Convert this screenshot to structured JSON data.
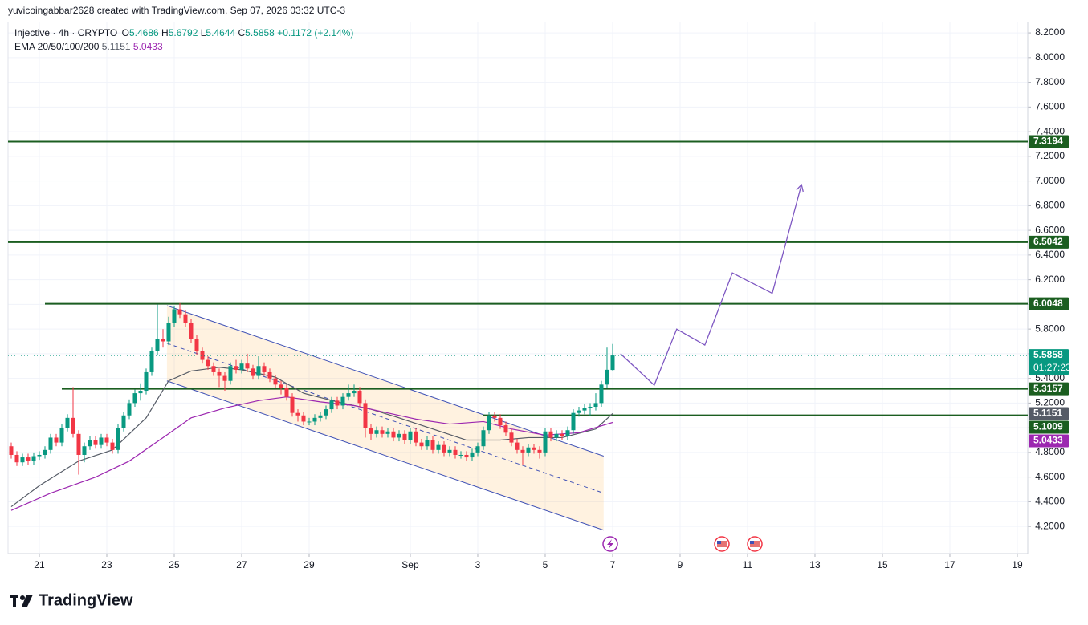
{
  "chart_data": {
    "type": "candlestick",
    "watermark": "yuvicoingabbar2628 created with TradingView.com, Sep 07, 2026 03:32 UTC-3",
    "brand": "TradingView",
    "header": {
      "symbol": "Injective · 4h · CRYPTO",
      "o": "O",
      "h": "H",
      "l": "L",
      "c": "C",
      "change": "+0.1172 (+2.14%)",
      "ema_label": "EMA 20/50/100/200"
    },
    "countdown": "01:27:23",
    "up_color": "#089981",
    "down_color": "#f23645",
    "xlim": [
      -0.57,
      180.86
    ],
    "ylim": [
      3.98,
      8.285
    ],
    "grid": true,
    "xticks": [
      {
        "value": 5,
        "label": "21"
      },
      {
        "value": 17,
        "label": "23"
      },
      {
        "value": 29,
        "label": "25"
      },
      {
        "value": 41,
        "label": "27"
      },
      {
        "value": 53,
        "label": "29"
      },
      {
        "value": 71,
        "label": "Sep"
      },
      {
        "value": 83,
        "label": "3"
      },
      {
        "value": 95,
        "label": "5"
      },
      {
        "value": 107,
        "label": "7"
      },
      {
        "value": 119,
        "label": "9"
      },
      {
        "value": 131,
        "label": "11"
      },
      {
        "value": 143,
        "label": "13"
      },
      {
        "value": 155,
        "label": "15"
      },
      {
        "value": 167,
        "label": "17"
      },
      {
        "value": 179,
        "label": "19"
      }
    ],
    "yticks": [
      {
        "value": 4.2,
        "label": "4.2000"
      },
      {
        "value": 4.4,
        "label": "4.4000"
      },
      {
        "value": 4.6,
        "label": "4.6000"
      },
      {
        "value": 4.8,
        "label": "4.8000"
      },
      {
        "value": 5.0,
        "label": "5.0000"
      },
      {
        "value": 5.2,
        "label": "5.2000"
      },
      {
        "value": 5.4,
        "label": "5.4000"
      },
      {
        "value": 5.6,
        "label": "5.6000"
      },
      {
        "value": 5.8,
        "label": "5.8000"
      },
      {
        "value": 6.0,
        "label": "6.0000"
      },
      {
        "value": 6.2,
        "label": "6.2000"
      },
      {
        "value": 6.4,
        "label": "6.4000"
      },
      {
        "value": 6.6,
        "label": "6.6000"
      },
      {
        "value": 6.8,
        "label": "6.8000"
      },
      {
        "value": 7.0,
        "label": "7.0000"
      },
      {
        "value": 7.2,
        "label": "7.2000"
      },
      {
        "value": 7.4,
        "label": "7.4000"
      },
      {
        "value": 7.6,
        "label": "7.6000"
      },
      {
        "value": 7.8,
        "label": "7.8000"
      },
      {
        "value": 8.0,
        "label": "8.0000"
      },
      {
        "value": 8.2,
        "label": "8.2000"
      }
    ],
    "ohlc": [
      [
        4.85,
        4.88,
        4.75,
        4.78
      ],
      [
        4.78,
        4.81,
        4.69,
        4.72
      ],
      [
        4.72,
        4.79,
        4.69,
        4.76
      ],
      [
        4.76,
        4.79,
        4.7,
        4.73
      ],
      [
        4.73,
        4.8,
        4.7,
        4.77
      ],
      [
        4.77,
        4.81,
        4.74,
        4.78
      ],
      [
        4.78,
        4.85,
        4.75,
        4.82
      ],
      [
        4.82,
        4.95,
        4.79,
        4.92
      ],
      [
        4.92,
        4.95,
        4.85,
        4.88
      ],
      [
        4.88,
        5.03,
        4.85,
        5.0
      ],
      [
        5.0,
        5.11,
        4.97,
        5.08
      ],
      [
        5.08,
        5.33,
        4.92,
        4.95
      ],
      [
        4.95,
        4.98,
        4.62,
        4.78
      ],
      [
        4.78,
        4.88,
        4.72,
        4.85
      ],
      [
        4.85,
        4.93,
        4.82,
        4.9
      ],
      [
        4.9,
        4.93,
        4.83,
        4.86
      ],
      [
        4.86,
        4.95,
        4.83,
        4.92
      ],
      [
        4.92,
        4.95,
        4.85,
        4.88
      ],
      [
        4.88,
        4.91,
        4.79,
        4.82
      ],
      [
        4.82,
        5.03,
        4.79,
        5.0
      ],
      [
        5.0,
        5.13,
        4.97,
        5.1
      ],
      [
        5.1,
        5.23,
        5.07,
        5.2
      ],
      [
        5.2,
        5.31,
        5.17,
        5.28
      ],
      [
        5.28,
        5.36,
        5.22,
        5.3
      ],
      [
        5.3,
        5.48,
        5.27,
        5.45
      ],
      [
        5.45,
        5.65,
        5.42,
        5.62
      ],
      [
        5.62,
        6.0,
        5.59,
        5.72
      ],
      [
        5.72,
        5.8,
        5.65,
        5.7
      ],
      [
        5.7,
        5.9,
        5.67,
        5.85
      ],
      [
        5.85,
        5.99,
        5.82,
        5.96
      ],
      [
        5.96,
        6.01,
        5.89,
        5.92
      ],
      [
        5.92,
        5.95,
        5.82,
        5.85
      ],
      [
        5.85,
        5.88,
        5.69,
        5.72
      ],
      [
        5.72,
        5.75,
        5.59,
        5.62
      ],
      [
        5.62,
        5.65,
        5.52,
        5.55
      ],
      [
        5.55,
        5.58,
        5.47,
        5.5
      ],
      [
        5.5,
        5.53,
        5.42,
        5.45
      ],
      [
        5.45,
        5.48,
        5.33,
        5.42
      ],
      [
        5.42,
        5.45,
        5.3,
        5.38
      ],
      [
        5.38,
        5.53,
        5.35,
        5.5
      ],
      [
        5.5,
        5.55,
        5.44,
        5.47
      ],
      [
        5.47,
        5.55,
        5.44,
        5.52
      ],
      [
        5.52,
        5.6,
        5.45,
        5.48
      ],
      [
        5.48,
        5.51,
        5.39,
        5.42
      ],
      [
        5.42,
        5.58,
        5.39,
        5.5
      ],
      [
        5.5,
        5.53,
        5.42,
        5.45
      ],
      [
        5.45,
        5.48,
        5.37,
        5.4
      ],
      [
        5.4,
        5.43,
        5.32,
        5.35
      ],
      [
        5.35,
        5.38,
        5.27,
        5.32
      ],
      [
        5.32,
        5.35,
        5.22,
        5.25
      ],
      [
        5.25,
        5.28,
        5.09,
        5.12
      ],
      [
        5.12,
        5.15,
        5.05,
        5.1
      ],
      [
        5.1,
        5.13,
        5.02,
        5.05
      ],
      [
        5.05,
        5.08,
        5.02,
        5.05
      ],
      [
        5.05,
        5.11,
        5.02,
        5.08
      ],
      [
        5.08,
        5.13,
        5.05,
        5.1
      ],
      [
        5.1,
        5.18,
        5.07,
        5.15
      ],
      [
        5.15,
        5.25,
        5.12,
        5.22
      ],
      [
        5.22,
        5.25,
        5.15,
        5.18
      ],
      [
        5.18,
        5.28,
        5.15,
        5.25
      ],
      [
        5.25,
        5.35,
        5.22,
        5.28
      ],
      [
        5.28,
        5.35,
        5.25,
        5.3
      ],
      [
        5.3,
        5.33,
        5.17,
        5.2
      ],
      [
        5.2,
        5.23,
        4.92,
        5.0
      ],
      [
        5.0,
        5.03,
        4.9,
        4.95
      ],
      [
        4.95,
        5.01,
        4.92,
        4.98
      ],
      [
        4.98,
        5.01,
        4.92,
        4.95
      ],
      [
        4.95,
        5.0,
        4.92,
        4.97
      ],
      [
        4.97,
        5.0,
        4.89,
        4.92
      ],
      [
        4.92,
        4.98,
        4.89,
        4.95
      ],
      [
        4.95,
        4.98,
        4.87,
        4.9
      ],
      [
        4.9,
        5.0,
        4.87,
        4.97
      ],
      [
        4.97,
        5.0,
        4.85,
        4.88
      ],
      [
        4.88,
        4.91,
        4.82,
        4.85
      ],
      [
        4.85,
        4.93,
        4.82,
        4.9
      ],
      [
        4.9,
        4.93,
        4.79,
        4.82
      ],
      [
        4.82,
        4.89,
        4.79,
        4.86
      ],
      [
        4.86,
        4.89,
        4.77,
        4.8
      ],
      [
        4.8,
        4.85,
        4.77,
        4.82
      ],
      [
        4.82,
        4.85,
        4.75,
        4.78
      ],
      [
        4.78,
        4.81,
        4.75,
        4.78
      ],
      [
        4.78,
        4.81,
        4.73,
        4.76
      ],
      [
        4.76,
        4.83,
        4.73,
        4.8
      ],
      [
        4.8,
        4.88,
        4.77,
        4.85
      ],
      [
        4.85,
        5.01,
        4.82,
        4.98
      ],
      [
        4.98,
        5.13,
        4.95,
        5.1
      ],
      [
        5.1,
        5.13,
        5.05,
        5.08
      ],
      [
        5.08,
        5.11,
        4.99,
        5.02
      ],
      [
        5.02,
        5.05,
        4.93,
        4.96
      ],
      [
        4.96,
        4.99,
        4.85,
        4.88
      ],
      [
        4.88,
        4.91,
        4.79,
        4.82
      ],
      [
        4.82,
        4.85,
        4.7,
        4.8
      ],
      [
        4.8,
        4.87,
        4.77,
        4.84
      ],
      [
        4.84,
        4.87,
        4.79,
        4.82
      ],
      [
        4.82,
        4.85,
        4.75,
        4.8
      ],
      [
        4.8,
        5.0,
        4.77,
        4.97
      ],
      [
        4.97,
        5.0,
        4.89,
        4.92
      ],
      [
        4.92,
        4.98,
        4.89,
        4.95
      ],
      [
        4.95,
        4.98,
        4.9,
        4.93
      ],
      [
        4.93,
        5.01,
        4.9,
        4.98
      ],
      [
        4.98,
        5.15,
        4.95,
        5.12
      ],
      [
        5.12,
        5.17,
        5.09,
        5.14
      ],
      [
        5.14,
        5.19,
        5.11,
        5.16
      ],
      [
        5.16,
        5.2,
        5.1,
        5.17
      ],
      [
        5.17,
        5.28,
        5.14,
        5.2
      ],
      [
        5.2,
        5.38,
        5.17,
        5.35
      ],
      [
        5.35,
        5.65,
        5.32,
        5.47
      ],
      [
        5.4686,
        5.6792,
        5.4644,
        5.5858
      ]
    ],
    "series": [
      {
        "color": "#555b66",
        "x": [
          0,
          5,
          12,
          18,
          24,
          28,
          32,
          37,
          41,
          47,
          52,
          58,
          64,
          69,
          75,
          81,
          87,
          92,
          98,
          104,
          107
        ],
        "values": [
          4.36,
          4.53,
          4.73,
          4.82,
          5.08,
          5.38,
          5.46,
          5.49,
          5.47,
          5.41,
          5.28,
          5.21,
          5.15,
          5.08,
          4.99,
          4.9,
          4.9,
          4.92,
          4.92,
          4.99,
          5.1151
        ]
      },
      {
        "color": "#9c27b0",
        "x": [
          0,
          7,
          15,
          21,
          27,
          32,
          38,
          44,
          49,
          55,
          61,
          67,
          72,
          78,
          84,
          89,
          95,
          101,
          107
        ],
        "values": [
          4.33,
          4.47,
          4.6,
          4.73,
          4.92,
          5.08,
          5.16,
          5.22,
          5.25,
          5.21,
          5.18,
          5.12,
          5.07,
          5.03,
          5.05,
          4.99,
          4.94,
          4.96,
          5.0433
        ]
      }
    ],
    "levels": [
      {
        "value": 7.3194,
        "start": -0.57
      },
      {
        "value": 6.5042,
        "start": -0.57
      },
      {
        "value": 6.0048,
        "start": 6
      },
      {
        "value": 5.3157,
        "start": 9
      },
      {
        "value": 5.1009,
        "start": 84
      }
    ],
    "level_color": "#1b5e20",
    "channel": {
      "x": [
        27.7,
        105.4
      ],
      "upper": [
        5.99,
        4.77
      ],
      "lower": [
        5.38,
        4.17
      ],
      "color": "#3f51b5"
    },
    "projection": {
      "color": "#7e57c2",
      "x": [
        108.4,
        114.4,
        118.4,
        123.4,
        128.3,
        135.4,
        140.6
      ],
      "values": [
        5.6,
        5.345,
        5.8,
        5.67,
        6.255,
        6.09,
        6.97
      ]
    }
  }
}
